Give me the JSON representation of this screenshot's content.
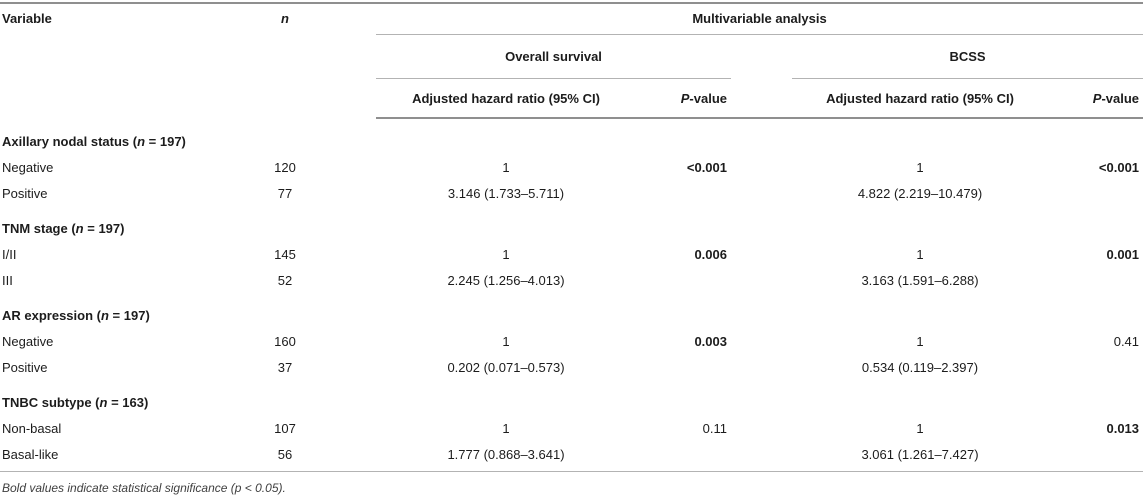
{
  "table": {
    "header": {
      "variable": "Variable",
      "n": "n",
      "multivariable": "Multivariable analysis",
      "overall_survival": "Overall survival",
      "bcss": "BCSS",
      "os_ahr": "Adjusted hazard ratio (95% CI)",
      "bcss_ahr": "Adjusted hazard ratio (95% CI)",
      "p_italic": "P",
      "p_rest": "-value"
    },
    "groups": [
      {
        "label": "Axillary nodal status",
        "n_count": "197",
        "rows": [
          {
            "variable": "Negative",
            "n": "120",
            "os_ahr": "1",
            "os_p": "<0.001",
            "os_p_bold": true,
            "bcss_ahr": "1",
            "bcss_p": "<0.001",
            "bcss_p_bold": true
          },
          {
            "variable": "Positive",
            "n": "77",
            "os_ahr": "3.146 (1.733–5.711)",
            "os_p": "",
            "os_p_bold": false,
            "bcss_ahr": "4.822 (2.219–10.479)",
            "bcss_p": "",
            "bcss_p_bold": false
          }
        ]
      },
      {
        "label": "TNM stage",
        "n_count": "197",
        "rows": [
          {
            "variable": "I/II",
            "n": "145",
            "os_ahr": "1",
            "os_p": "0.006",
            "os_p_bold": true,
            "bcss_ahr": "1",
            "bcss_p": "0.001",
            "bcss_p_bold": true
          },
          {
            "variable": "III",
            "n": "52",
            "os_ahr": "2.245 (1.256–4.013)",
            "os_p": "",
            "os_p_bold": false,
            "bcss_ahr": "3.163 (1.591–6.288)",
            "bcss_p": "",
            "bcss_p_bold": false
          }
        ]
      },
      {
        "label": "AR expression",
        "n_count": "197",
        "rows": [
          {
            "variable": "Negative",
            "n": "160",
            "os_ahr": "1",
            "os_p": "0.003",
            "os_p_bold": true,
            "bcss_ahr": "1",
            "bcss_p": "0.41",
            "bcss_p_bold": false
          },
          {
            "variable": "Positive",
            "n": "37",
            "os_ahr": "0.202 (0.071–0.573)",
            "os_p": "",
            "os_p_bold": false,
            "bcss_ahr": "0.534 (0.119–2.397)",
            "bcss_p": "",
            "bcss_p_bold": false
          }
        ]
      },
      {
        "label": "TNBC subtype",
        "n_count": "163",
        "rows": [
          {
            "variable": "Non-basal",
            "n": "107",
            "os_ahr": "1",
            "os_p": "0.11",
            "os_p_bold": false,
            "bcss_ahr": "1",
            "bcss_p": "0.013",
            "bcss_p_bold": true
          },
          {
            "variable": "Basal-like",
            "n": "56",
            "os_ahr": "1.777 (0.868–3.641)",
            "os_p": "",
            "os_p_bold": false,
            "bcss_ahr": "3.061 (1.261–7.427)",
            "bcss_p": "",
            "bcss_p_bold": false
          }
        ]
      }
    ],
    "group_label_n_prefix": " (",
    "group_label_n_mid": " = ",
    "group_label_n_suffix": ")",
    "footnote": "Bold values indicate statistical significance (p < 0.05)."
  }
}
